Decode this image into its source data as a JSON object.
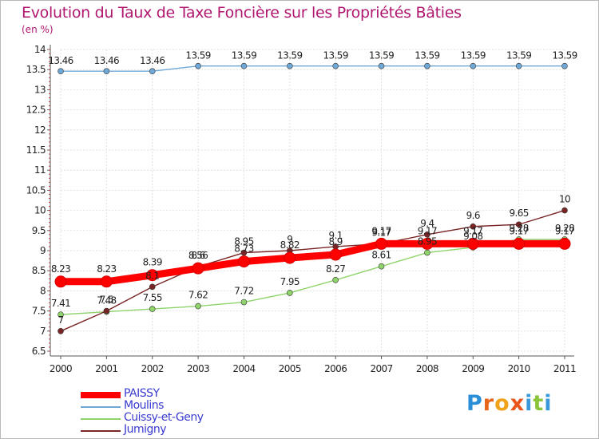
{
  "header": {
    "title": "Evolution du Taux de Taxe Foncière sur les Propriétés Bâties",
    "unit": "(en %)"
  },
  "brand": {
    "letters": [
      "P",
      "r",
      "o",
      "x",
      "i",
      "t",
      "i"
    ],
    "colors": [
      "#2b8fd8",
      "#e8661a",
      "#f0a21a",
      "#e8541a",
      "#3a9ad9",
      "#8ac43a",
      "#3a9ad9"
    ]
  },
  "chart_data": {
    "type": "line",
    "title": "Evolution du Taux de Taxe Foncière sur les Propriétés Bâties",
    "ylabel": "(en %)",
    "xlabel": "",
    "x": [
      "2000",
      "2001",
      "2002",
      "2003",
      "2004",
      "2005",
      "2006",
      "2007",
      "2008",
      "2009",
      "2010",
      "2011"
    ],
    "ylim": [
      6.5,
      14
    ],
    "yticks": [
      "6.5",
      "7",
      "7.5",
      "8",
      "8.5",
      "9",
      "9.5",
      "10",
      "10.5",
      "11",
      "11.5",
      "12",
      "12.5",
      "13",
      "13.5",
      "14"
    ],
    "grid": true,
    "legend_position": "bottom-left",
    "series": [
      {
        "name": "PAISSY",
        "color": "#ff0000",
        "style": "thick",
        "values": [
          8.23,
          8.23,
          8.39,
          8.56,
          8.73,
          8.82,
          8.9,
          9.17,
          9.17,
          9.17,
          9.17,
          9.17
        ],
        "labels": [
          "8.23",
          "8.23",
          "8.39",
          "8.56",
          "8.73",
          "8.82",
          "8.9",
          "9.17",
          "9.17",
          "9.17",
          "9.17",
          "9.17"
        ]
      },
      {
        "name": "Moulins",
        "color": "#6fa8d6",
        "style": "thin",
        "values": [
          13.46,
          13.46,
          13.46,
          13.59,
          13.59,
          13.59,
          13.59,
          13.59,
          13.59,
          13.59,
          13.59,
          13.59
        ],
        "labels": [
          "13.46",
          "13.46",
          "13.46",
          "13.59",
          "13.59",
          "13.59",
          "13.59",
          "13.59",
          "13.59",
          "13.59",
          "13.59",
          "13.59"
        ]
      },
      {
        "name": "Cuissy-et-Geny",
        "color": "#8fd46a",
        "style": "thin",
        "values": [
          7.41,
          7.48,
          7.55,
          7.62,
          7.72,
          7.95,
          8.27,
          8.61,
          8.95,
          9.08,
          9.28,
          9.28
        ],
        "labels": [
          "7.41",
          "7.48",
          "7.55",
          "7.62",
          "7.72",
          "7.95",
          "8.27",
          "8.61",
          "8.95",
          "9.08",
          "9.28",
          "9.28"
        ]
      },
      {
        "name": "Jumigny",
        "color": "#7a2525",
        "style": "thin",
        "values": [
          7,
          7.5,
          8.1,
          8.6,
          8.95,
          9,
          9.1,
          9.17,
          9.4,
          9.6,
          9.65,
          10
        ],
        "labels": [
          "7",
          "7.5",
          "8.1",
          "8.6",
          "8.95",
          "9",
          "9.1",
          "9.17",
          "9.4",
          "9.6",
          "9.65",
          "10"
        ]
      }
    ]
  }
}
